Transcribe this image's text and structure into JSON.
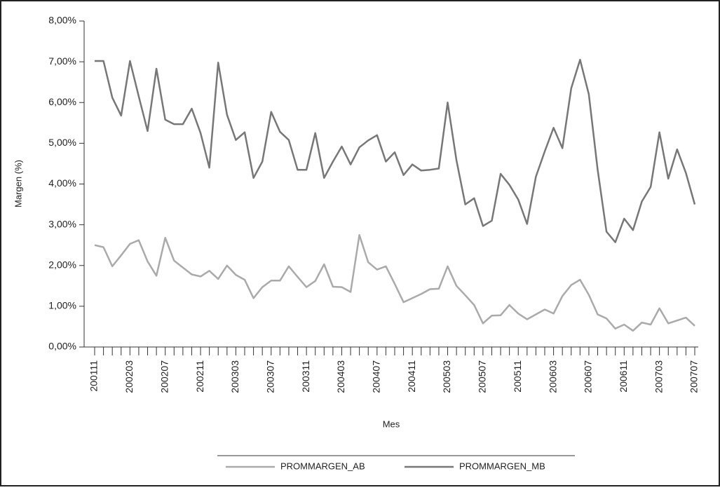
{
  "chart_data": {
    "type": "line",
    "xlabel": "Mes",
    "ylabel": "Margen (%)",
    "categories": [
      "200111",
      null,
      null,
      null,
      "200203",
      null,
      null,
      null,
      "200207",
      null,
      null,
      null,
      "200211",
      null,
      null,
      null,
      "200303",
      null,
      null,
      null,
      "200307",
      null,
      null,
      null,
      "200311",
      null,
      null,
      null,
      "200403",
      null,
      null,
      null,
      "200407",
      null,
      null,
      null,
      "200411",
      null,
      null,
      null,
      "200503",
      null,
      null,
      null,
      "200507",
      null,
      null,
      null,
      "200511",
      null,
      null,
      null,
      "200603",
      null,
      null,
      null,
      "200607",
      null,
      null,
      null,
      "200611",
      null,
      null,
      null,
      "200703",
      null,
      null,
      null,
      "200707"
    ],
    "series": [
      {
        "name": "PROMMARGEN_AB",
        "color": "#aaaaaa",
        "values": [
          2.5,
          2.45,
          1.98,
          2.25,
          2.53,
          2.62,
          2.1,
          1.75,
          2.68,
          2.12,
          1.95,
          1.78,
          1.73,
          1.87,
          1.67,
          2.0,
          1.77,
          1.65,
          1.2,
          1.47,
          1.63,
          1.63,
          1.98,
          1.72,
          1.47,
          1.62,
          2.03,
          1.48,
          1.47,
          1.35,
          2.75,
          2.08,
          1.9,
          1.98,
          1.55,
          1.1,
          1.2,
          1.3,
          1.42,
          1.43,
          1.98,
          1.5,
          1.27,
          1.03,
          0.58,
          0.77,
          0.78,
          1.03,
          0.82,
          0.68,
          0.8,
          0.92,
          0.82,
          1.25,
          1.52,
          1.65,
          1.28,
          0.8,
          0.7,
          0.45,
          0.55,
          0.4,
          0.6,
          0.55,
          0.95,
          0.58,
          0.65,
          0.72,
          0.52
        ]
      },
      {
        "name": "PROMMARGEN_MB",
        "color": "#777777",
        "values": [
          7.02,
          7.02,
          6.12,
          5.68,
          7.02,
          6.15,
          5.3,
          6.83,
          5.58,
          5.47,
          5.47,
          5.85,
          5.25,
          4.4,
          6.98,
          5.7,
          5.08,
          5.27,
          4.15,
          4.55,
          5.77,
          5.28,
          5.08,
          4.35,
          4.35,
          5.25,
          4.15,
          4.55,
          4.92,
          4.48,
          4.9,
          5.07,
          5.2,
          4.55,
          4.78,
          4.22,
          4.48,
          4.33,
          4.35,
          4.38,
          6.0,
          4.58,
          3.5,
          3.65,
          2.97,
          3.1,
          4.25,
          3.98,
          3.62,
          3.02,
          4.18,
          4.8,
          5.38,
          4.88,
          6.35,
          7.05,
          6.2,
          4.35,
          2.83,
          2.57,
          3.15,
          2.87,
          3.57,
          3.93,
          5.27,
          4.13,
          4.85,
          4.27,
          3.5
        ]
      }
    ],
    "ylim": [
      0,
      8
    ],
    "yticks": [
      {
        "value": 0,
        "label": "0,00%"
      },
      {
        "value": 1,
        "label": "1,00%"
      },
      {
        "value": 2,
        "label": "2,00%"
      },
      {
        "value": 3,
        "label": "3,00%"
      },
      {
        "value": 4,
        "label": "4,00%"
      },
      {
        "value": 5,
        "label": "5,00%"
      },
      {
        "value": 6,
        "label": "6,00%"
      },
      {
        "value": 7,
        "label": "7,00%"
      },
      {
        "value": 8,
        "label": "8,00%"
      }
    ],
    "grid": false,
    "legend": "bottom"
  }
}
